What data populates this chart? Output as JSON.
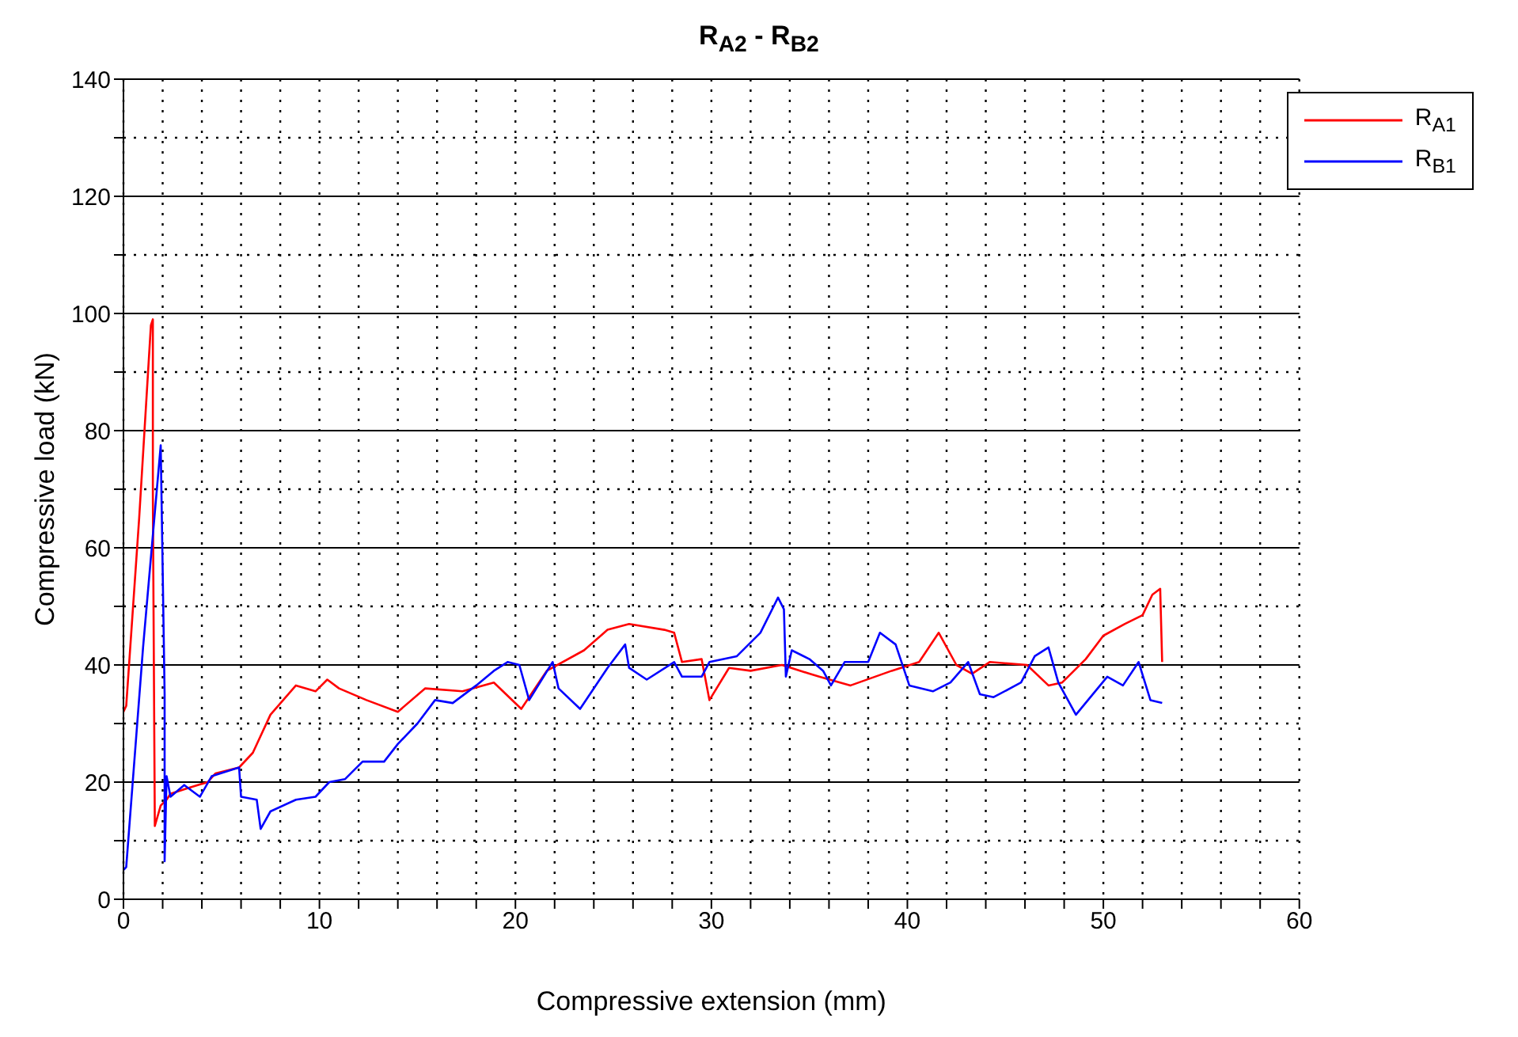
{
  "chart_data": {
    "type": "line",
    "title": "R$_{A2}$ - R$_{B2}$",
    "xlabel": "Compressive extension (mm)",
    "ylabel": "Compressive load (kN)",
    "xlim": [
      0,
      60
    ],
    "ylim": [
      0,
      140
    ],
    "xticks": [
      0,
      {
        "value": 2,
        "label": null
      },
      {
        "value": 4,
        "label": null
      },
      {
        "value": 6,
        "label": null
      },
      {
        "value": 8,
        "label": null
      },
      10,
      {
        "value": 12,
        "label": null
      },
      {
        "value": 14,
        "label": null
      },
      {
        "value": 16,
        "label": null
      },
      {
        "value": 18,
        "label": null
      },
      20,
      {
        "value": 22,
        "label": null
      },
      {
        "value": 24,
        "label": null
      },
      {
        "value": 26,
        "label": null
      },
      {
        "value": 28,
        "label": null
      },
      30,
      {
        "value": 32,
        "label": null
      },
      {
        "value": 34,
        "label": null
      },
      {
        "value": 36,
        "label": null
      },
      {
        "value": 38,
        "label": null
      },
      40,
      {
        "value": 42,
        "label": null
      },
      {
        "value": 44,
        "label": null
      },
      {
        "value": 46,
        "label": null
      },
      {
        "value": 48,
        "label": null
      },
      50,
      {
        "value": 52,
        "label": null
      },
      {
        "value": 54,
        "label": null
      },
      {
        "value": 56,
        "label": null
      },
      {
        "value": 58,
        "label": null
      },
      60
    ],
    "yticks": [
      0,
      {
        "value": 10,
        "label": null
      },
      20,
      {
        "value": 30,
        "label": null
      },
      40,
      {
        "value": 50,
        "label": null
      },
      60,
      {
        "value": 70,
        "label": null
      },
      80,
      {
        "value": 90,
        "label": null
      },
      100,
      {
        "value": 110,
        "label": null
      },
      120,
      {
        "value": 130,
        "label": null
      },
      140
    ],
    "grid": true,
    "legend": "top right",
    "marker": "none",
    "line_style": "solid",
    "series": [
      {
        "name": "R$_{A1}$",
        "color": "#ff0000",
        "x": [
          0,
          0.14,
          0.8,
          1.4,
          1.5,
          1.5,
          1.6,
          1.9,
          2.2,
          2.4,
          3.3,
          4.3,
          4.7,
          5.9,
          6.6,
          7.5,
          8.8,
          9.8,
          10.4,
          11,
          12.4,
          14,
          15.4,
          17.3,
          18.9,
          20.3,
          21.6,
          23.5,
          24.7,
          25.8,
          27.6,
          28.1,
          28.5,
          29.5,
          29.9,
          30.9,
          32,
          33.6,
          35,
          35.5,
          37.1,
          39.2,
          40.6,
          41.6,
          42.5,
          43.3,
          44.2,
          46.1,
          47.2,
          47.9,
          49.1,
          50,
          51.1,
          52,
          52.5,
          52.9,
          53
        ],
        "values": [
          32,
          33,
          65,
          98,
          99,
          69,
          12.5,
          16,
          17,
          18,
          19,
          20,
          21.5,
          22.5,
          25,
          31.5,
          36.5,
          35.5,
          37.5,
          36,
          34,
          32,
          36,
          35.5,
          37,
          32.5,
          39,
          42.5,
          46,
          47,
          46,
          45.5,
          40.5,
          41,
          34,
          39.5,
          39,
          40,
          38.5,
          38,
          36.5,
          39,
          40.5,
          45.5,
          40,
          38.5,
          40.5,
          40,
          36.5,
          37,
          41,
          45,
          47,
          48.5,
          52,
          53,
          40.5
        ]
      },
      {
        "name": "R$_{B1}$",
        "color": "#0000ff",
        "x": [
          0,
          0.14,
          1,
          1.9,
          2.1,
          2.1,
          2.2,
          2.4,
          3.1,
          3.9,
          4.5,
          5.9,
          6,
          6.8,
          7,
          7.5,
          8.8,
          9.8,
          10.5,
          11.3,
          12.2,
          13.3,
          14,
          15,
          15.9,
          16.8,
          18,
          18.9,
          19.6,
          20.2,
          20.7,
          21.9,
          22.2,
          23.3,
          24.7,
          25.6,
          25.8,
          26.7,
          28.1,
          28.5,
          29.5,
          29.9,
          31.3,
          32.5,
          33.4,
          33.7,
          33.8,
          34.1,
          35,
          35.7,
          36.1,
          36.8,
          38,
          38.6,
          39.4,
          40.1,
          41.3,
          42.2,
          43.1,
          43.7,
          44.4,
          45.8,
          46.5,
          47.2,
          47.7,
          48.6,
          50.2,
          51,
          51.8,
          52.4,
          53
        ],
        "values": [
          5,
          5.5,
          43,
          77.5,
          35,
          6.5,
          21,
          17.5,
          19.5,
          17.5,
          21,
          22.5,
          17.5,
          17,
          12,
          15,
          17,
          17.5,
          20,
          20.5,
          23.5,
          23.5,
          26.5,
          30,
          34,
          33.5,
          36.5,
          39,
          40.5,
          40,
          34,
          40.5,
          36,
          32.5,
          39.5,
          43.5,
          39.5,
          37.5,
          40.5,
          38,
          38,
          40.5,
          41.5,
          45.5,
          51.5,
          49.5,
          38,
          42.5,
          41,
          39,
          36.5,
          40.5,
          40.5,
          45.5,
          43.5,
          36.5,
          35.5,
          37,
          40.5,
          35,
          34.5,
          37,
          41.5,
          43,
          37,
          31.5,
          38,
          36.5,
          40.5,
          34,
          33.5
        ]
      }
    ]
  }
}
